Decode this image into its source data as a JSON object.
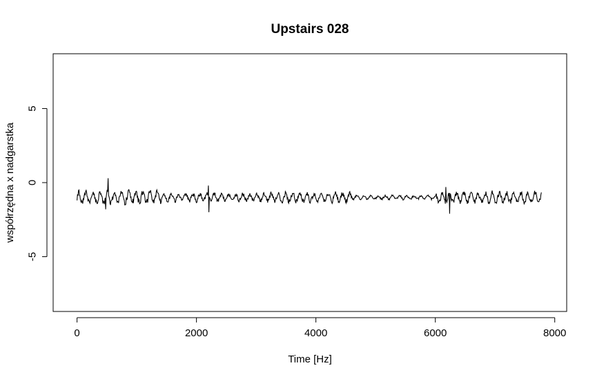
{
  "chart_data": {
    "type": "line",
    "title": "Upstairs 028",
    "xlabel": "Time [Hz]",
    "ylabel": "współrzędna x nadgarstka",
    "xlim": [
      -400,
      8200
    ],
    "ylim": [
      -8.7,
      8.7
    ],
    "x_ticks": [
      0,
      2000,
      4000,
      6000,
      8000
    ],
    "y_ticks": [
      -5,
      0,
      5
    ],
    "grid": false,
    "line_color": "#000000",
    "series": [
      {
        "x_start": 0,
        "x_end": 7780,
        "baseline": -1.0,
        "noise": [
          {
            "from": 0,
            "to": 1400,
            "amplitude": 0.45
          },
          {
            "from": 1400,
            "to": 3200,
            "amplitude": 0.3
          },
          {
            "from": 3200,
            "to": 4600,
            "amplitude": 0.35
          },
          {
            "from": 4600,
            "to": 6000,
            "amplitude": 0.15
          },
          {
            "from": 6000,
            "to": 6300,
            "amplitude": 0.4
          },
          {
            "from": 6300,
            "to": 7780,
            "amplitude": 0.4
          }
        ],
        "spikes": [
          {
            "x": 520,
            "y": 0.3
          },
          {
            "x": 480,
            "y": -1.8
          },
          {
            "x": 2200,
            "y": -0.2
          },
          {
            "x": 2210,
            "y": -2.0
          },
          {
            "x": 6180,
            "y": -0.3
          },
          {
            "x": 6240,
            "y": -2.1
          }
        ]
      }
    ]
  }
}
